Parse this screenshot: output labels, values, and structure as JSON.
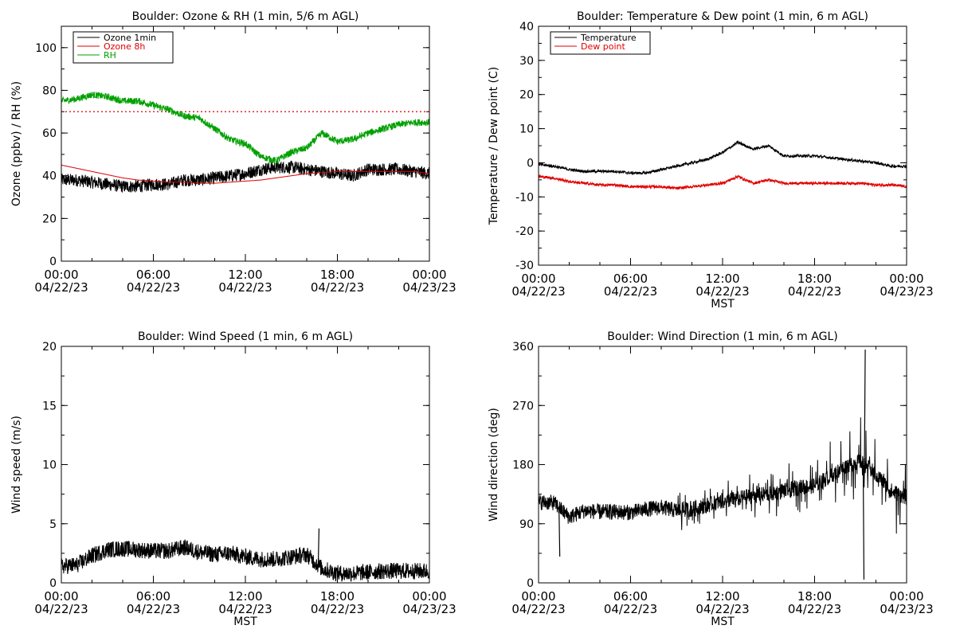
{
  "x_tick_labels": {
    "times": [
      "00:00",
      "06:00",
      "12:00",
      "18:00",
      "00:00"
    ],
    "dates": [
      "04/22/23",
      "04/22/23",
      "04/22/23",
      "04/22/23",
      "04/23/23"
    ]
  },
  "colors": {
    "black": "#000000",
    "red": "#e00000",
    "green": "#00a000",
    "ref_line": "#e00000"
  },
  "chart_data": [
    {
      "type": "line",
      "title": "Boulder: Ozone & RH (1 min, 5/6 m AGL)",
      "xlabel": "",
      "ylabel": "Ozone (ppbv) / RH (%)",
      "xlim": [
        "04/22/23 00:00",
        "04/23/23 00:00"
      ],
      "ylim": [
        0,
        110
      ],
      "yticks": [
        0,
        20,
        40,
        60,
        80,
        100
      ],
      "legend_position": "top-left",
      "reference_line": {
        "y": 70,
        "style": "dotted",
        "color": "#e00000"
      },
      "series": [
        {
          "name": "Ozone 1min",
          "color": "#000000",
          "noise": 3,
          "x": [
            "00:00",
            "01:00",
            "02:00",
            "03:00",
            "04:00",
            "05:00",
            "06:00",
            "07:00",
            "08:00",
            "09:00",
            "10:00",
            "11:00",
            "12:00",
            "13:00",
            "14:00",
            "15:00",
            "16:00",
            "17:00",
            "18:00",
            "19:00",
            "20:00",
            "21:00",
            "22:00",
            "23:00",
            "24:00"
          ],
          "values": [
            38,
            38,
            37,
            36,
            35,
            35,
            36,
            36,
            38,
            38,
            39,
            40,
            41,
            43,
            44,
            44,
            43,
            42,
            41,
            40,
            43,
            43,
            43,
            42,
            41
          ]
        },
        {
          "name": "Ozone 8h",
          "color": "#e00000",
          "noise": 0,
          "x": [
            "00:00",
            "01:00",
            "02:00",
            "03:00",
            "04:00",
            "05:00",
            "06:00",
            "07:00",
            "08:00",
            "09:00",
            "10:00",
            "11:00",
            "12:00",
            "13:00",
            "14:00",
            "15:00",
            "16:00",
            "17:00",
            "18:00",
            "19:00",
            "20:00",
            "21:00",
            "22:00",
            "23:00",
            "24:00"
          ],
          "values": [
            45,
            43.5,
            42,
            40.5,
            39,
            38,
            37.5,
            37,
            37,
            36.5,
            36.5,
            37,
            37.5,
            38,
            39,
            40,
            41,
            41.5,
            42,
            42,
            42,
            42,
            42,
            42,
            41
          ]
        },
        {
          "name": "RH",
          "color": "#00a000",
          "noise": 1.6,
          "x": [
            "00:00",
            "01:00",
            "02:00",
            "03:00",
            "04:00",
            "05:00",
            "06:00",
            "07:00",
            "08:00",
            "09:00",
            "10:00",
            "11:00",
            "12:00",
            "13:00",
            "14:00",
            "15:00",
            "16:00",
            "17:00",
            "18:00",
            "19:00",
            "20:00",
            "21:00",
            "22:00",
            "23:00",
            "24:00"
          ],
          "values": [
            75,
            76,
            78,
            77,
            75,
            75,
            73,
            71,
            68,
            67,
            62,
            57,
            55,
            49,
            47,
            51,
            53,
            60,
            56,
            57,
            60,
            62,
            64,
            65,
            65
          ]
        }
      ]
    },
    {
      "type": "line",
      "title": "Boulder: Temperature & Dew point (1 min, 6 m AGL)",
      "xlabel": "MST",
      "ylabel": "Temperature / Dew point (C)",
      "xlim": [
        "04/22/23 00:00",
        "04/23/23 00:00"
      ],
      "ylim": [
        -30,
        40
      ],
      "yticks": [
        -30,
        -20,
        -10,
        0,
        10,
        20,
        30,
        40
      ],
      "legend_position": "top-left",
      "series": [
        {
          "name": "Temperature",
          "color": "#000000",
          "noise": 0.4,
          "x": [
            "00:00",
            "01:00",
            "02:00",
            "03:00",
            "04:00",
            "05:00",
            "06:00",
            "07:00",
            "08:00",
            "09:00",
            "10:00",
            "11:00",
            "12:00",
            "13:00",
            "14:00",
            "15:00",
            "16:00",
            "17:00",
            "18:00",
            "19:00",
            "20:00",
            "21:00",
            "22:00",
            "23:00",
            "24:00"
          ],
          "values": [
            -0.5,
            -1,
            -2,
            -2.5,
            -2.5,
            -2.5,
            -3,
            -3,
            -2,
            -1,
            0,
            1,
            3,
            6,
            4,
            5,
            2,
            2,
            2,
            1.5,
            1,
            0.5,
            0,
            -1,
            -1
          ]
        },
        {
          "name": "Dew point",
          "color": "#e00000",
          "noise": 0.4,
          "x": [
            "00:00",
            "01:00",
            "02:00",
            "03:00",
            "04:00",
            "05:00",
            "06:00",
            "07:00",
            "08:00",
            "09:00",
            "10:00",
            "11:00",
            "12:00",
            "13:00",
            "14:00",
            "15:00",
            "16:00",
            "17:00",
            "18:00",
            "19:00",
            "20:00",
            "21:00",
            "22:00",
            "23:00",
            "24:00"
          ],
          "values": [
            -4,
            -4.5,
            -5.5,
            -6,
            -6.5,
            -6.5,
            -7,
            -7,
            -7,
            -7.5,
            -7,
            -6.5,
            -6,
            -4,
            -6,
            -5,
            -6,
            -6,
            -6,
            -6,
            -6,
            -6,
            -6.5,
            -6.5,
            -7
          ]
        }
      ]
    },
    {
      "type": "line",
      "title": "Boulder: Wind Speed (1 min, 6 m AGL)",
      "xlabel": "MST",
      "ylabel": "Wind speed (m/s)",
      "xlim": [
        "04/22/23 00:00",
        "04/23/23 00:00"
      ],
      "ylim": [
        0,
        20
      ],
      "yticks": [
        0,
        5,
        10,
        15,
        20
      ],
      "series": [
        {
          "name": "",
          "color": "#000000",
          "noise": 0.7,
          "x": [
            "00:00",
            "01:00",
            "02:00",
            "03:00",
            "04:00",
            "05:00",
            "06:00",
            "07:00",
            "08:00",
            "09:00",
            "10:00",
            "11:00",
            "12:00",
            "13:00",
            "14:00",
            "15:00",
            "16:00",
            "17:00",
            "18:00",
            "19:00",
            "20:00",
            "21:00",
            "22:00",
            "23:00",
            "24:00"
          ],
          "values": [
            1.4,
            1.5,
            2.3,
            2.8,
            2.9,
            2.8,
            2.7,
            2.7,
            3.0,
            2.6,
            2.4,
            2.5,
            2.2,
            2.0,
            2.0,
            2.2,
            2.4,
            1.2,
            0.8,
            0.8,
            0.9,
            1.0,
            1.0,
            1.0,
            1.0
          ]
        }
      ]
    },
    {
      "type": "line",
      "title": "Boulder: Wind Direction (1 min, 6 m AGL)",
      "xlabel": "MST",
      "ylabel": "Wind direction (deg)",
      "xlim": [
        "04/22/23 00:00",
        "04/23/23 00:00"
      ],
      "ylim": [
        0,
        360
      ],
      "yticks": [
        0,
        90,
        180,
        270,
        360
      ],
      "series": [
        {
          "name": "",
          "color": "#000000",
          "noise": 12,
          "x": [
            "00:00",
            "01:00",
            "02:00",
            "03:00",
            "04:00",
            "05:00",
            "06:00",
            "07:00",
            "08:00",
            "09:00",
            "10:00",
            "11:00",
            "12:00",
            "13:00",
            "14:00",
            "15:00",
            "16:00",
            "17:00",
            "18:00",
            "19:00",
            "20:00",
            "21:00",
            "22:00",
            "23:00",
            "24:00"
          ],
          "values": [
            123,
            122,
            100,
            110,
            108,
            108,
            107,
            112,
            115,
            110,
            112,
            118,
            125,
            128,
            133,
            135,
            140,
            145,
            148,
            162,
            178,
            185,
            165,
            140,
            130
          ]
        }
      ]
    }
  ],
  "spikes": [
    {
      "chart": 2,
      "x": "16:45",
      "y": 4.6
    },
    {
      "chart": 3,
      "x": "01:20",
      "y": 40
    },
    {
      "chart": 3,
      "x": "21:15",
      "y": 355
    },
    {
      "chart": 3,
      "x": "21:10",
      "y": 5
    }
  ]
}
